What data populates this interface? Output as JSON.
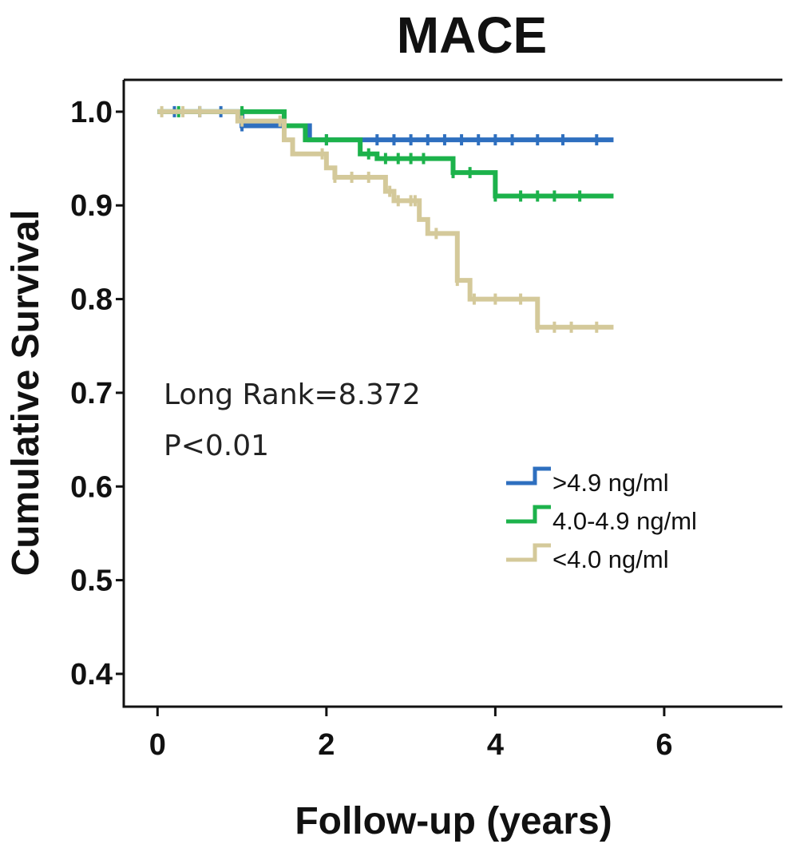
{
  "chart_data": {
    "type": "line",
    "title": "MACE",
    "xlabel": "Follow-up (years)",
    "ylabel": "Cumulative  Survival",
    "xlim": [
      -0.4,
      7.4
    ],
    "ylim": [
      0.365,
      1.034
    ],
    "x_ticks": [
      "0",
      "2",
      "4",
      "6"
    ],
    "y_ticks": [
      "0.4",
      "0.5",
      "0.6",
      "0.7",
      "0.8",
      "0.9",
      "1.0"
    ],
    "grid": false,
    "legend_position": "lower-right",
    "annotations": [
      "Long Rank=8.372",
      "P<0.01"
    ],
    "series": [
      {
        "name": ">4.9 ng/ml",
        "color": "#2e6fbf",
        "steps": [
          [
            0,
            1.0
          ],
          [
            1.0,
            0.985
          ],
          [
            1.8,
            0.97
          ],
          [
            5.4,
            0.97
          ]
        ],
        "censored": [
          0.2,
          0.5,
          0.75,
          1.0,
          1.5,
          2.0,
          2.6,
          2.8,
          3.0,
          3.2,
          3.4,
          3.6,
          3.8,
          4.0,
          4.2,
          4.5,
          4.8,
          5.2
        ]
      },
      {
        "name": "4.0-4.9 ng/ml",
        "color": "#1cb24b",
        "steps": [
          [
            0,
            1.0
          ],
          [
            1.5,
            0.985
          ],
          [
            1.75,
            0.97
          ],
          [
            2.4,
            0.955
          ],
          [
            2.6,
            0.95
          ],
          [
            3.5,
            0.935
          ],
          [
            4.0,
            0.91
          ],
          [
            5.4,
            0.91
          ]
        ],
        "censored": [
          0.25,
          1.0,
          1.5,
          2.0,
          2.5,
          2.7,
          2.85,
          3.0,
          3.15,
          3.5,
          3.7,
          4.0,
          4.3,
          4.5,
          4.7,
          5.0
        ]
      },
      {
        "name": "<4.0 ng/ml",
        "color": "#d4c99a",
        "steps": [
          [
            0,
            1.0
          ],
          [
            0.95,
            0.99
          ],
          [
            1.5,
            0.97
          ],
          [
            1.6,
            0.955
          ],
          [
            2.0,
            0.94
          ],
          [
            2.1,
            0.93
          ],
          [
            2.7,
            0.915
          ],
          [
            2.8,
            0.905
          ],
          [
            3.1,
            0.885
          ],
          [
            3.2,
            0.87
          ],
          [
            3.55,
            0.82
          ],
          [
            3.7,
            0.8
          ],
          [
            4.5,
            0.77
          ],
          [
            5.4,
            0.77
          ]
        ],
        "censored": [
          0.05,
          0.3,
          0.5,
          1.0,
          1.45,
          1.95,
          2.1,
          2.3,
          2.5,
          2.75,
          2.85,
          3.0,
          3.05,
          3.3,
          3.55,
          3.75,
          4.0,
          4.3,
          4.5,
          4.7,
          4.9,
          5.2
        ]
      }
    ]
  }
}
